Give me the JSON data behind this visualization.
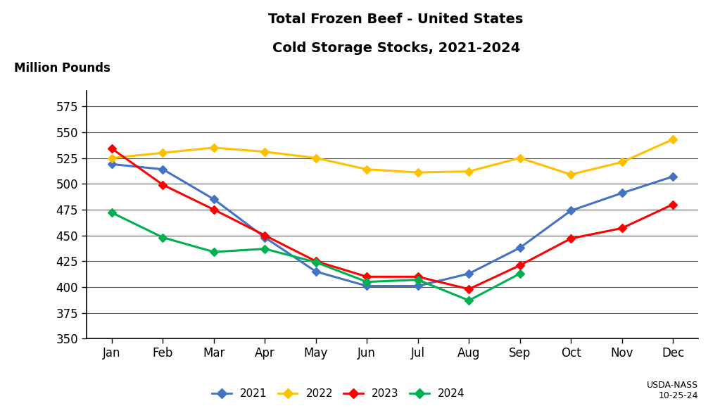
{
  "title_line1": "Total Frozen Beef - United States",
  "title_line2": "Cold Storage Stocks, 2021-2024",
  "ylabel": "Million Pounds",
  "months": [
    "Jan",
    "Feb",
    "Mar",
    "Apr",
    "May",
    "Jun",
    "Jul",
    "Aug",
    "Sep",
    "Oct",
    "Nov",
    "Dec"
  ],
  "series": {
    "2021": [
      519,
      514,
      485,
      448,
      415,
      401,
      401,
      413,
      438,
      474,
      491,
      507
    ],
    "2022": [
      525,
      530,
      535,
      531,
      525,
      514,
      511,
      512,
      525,
      509,
      521,
      543
    ],
    "2023": [
      534,
      499,
      475,
      450,
      425,
      410,
      410,
      398,
      421,
      447,
      457,
      480
    ],
    "2024": [
      472,
      448,
      434,
      437,
      424,
      405,
      407,
      387,
      413,
      null,
      null,
      null
    ]
  },
  "colors": {
    "2021": "#4472C4",
    "2022": "#FFC000",
    "2023": "#FF0000",
    "2024": "#00B050"
  },
  "ylim": [
    350,
    590
  ],
  "yticks": [
    350,
    375,
    400,
    425,
    450,
    475,
    500,
    525,
    550,
    575
  ],
  "annotation": "USDA-NASS\n10-25-24",
  "background_color": "#FFFFFF",
  "grid_color": "#555555",
  "legend_labels": [
    "2021",
    "2022",
    "2023",
    "2024"
  ],
  "marker": "D",
  "linewidth": 2.2,
  "markersize": 6
}
